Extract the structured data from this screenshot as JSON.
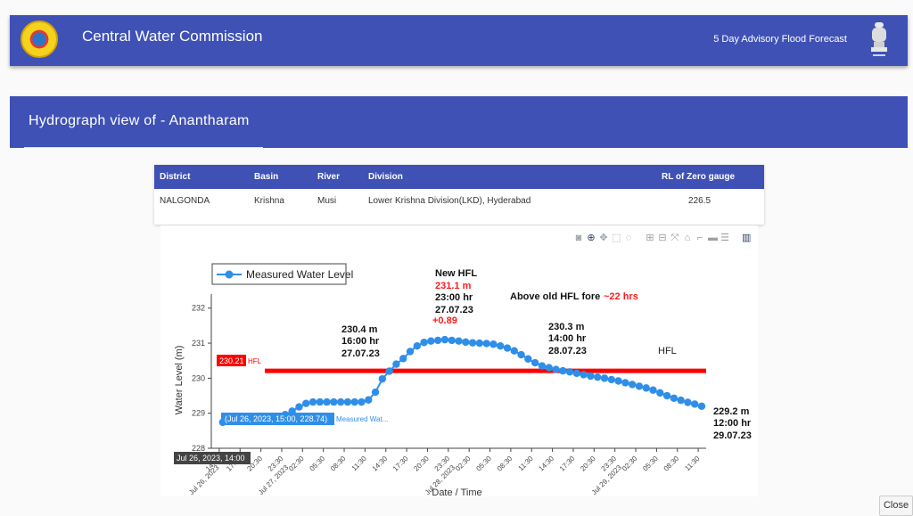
{
  "header": {
    "title": "Central Water Commission",
    "advisory_link": "5 Day Advisory Flood Forecast"
  },
  "panel": {
    "title": "Hydrograph view of - Anantharam"
  },
  "station_table": {
    "headers": [
      "District",
      "Basin",
      "River",
      "Division",
      "RL of Zero gauge"
    ],
    "row": [
      "NALGONDA",
      "Krishna",
      "Musi",
      "Lower Krishna Division(LKD), Hyderabad",
      "226.5"
    ]
  },
  "modebar": {
    "icons": [
      "camera-icon",
      "zoom-icon",
      "pan-icon",
      "box-select-icon",
      "lasso-icon",
      "zoom-in-icon",
      "zoom-out-icon",
      "autoscale-icon",
      "reset-axes-icon",
      "spike-lines-icon",
      "hover-closest-icon",
      "hover-compare-icon",
      "plotly-logo-icon"
    ],
    "glyphs": [
      "◙",
      "⊕",
      "✥",
      "⬚",
      "◌",
      "⊞",
      "⊟",
      "⤧",
      "⌂",
      "⌐",
      "▬",
      "☰",
      "▥"
    ]
  },
  "chart_data": {
    "type": "line",
    "series": [
      {
        "name": "Measured Water Level",
        "color": "#2f8fe8",
        "x": [
          "2023-07-26 14:00",
          "2023-07-26 15:00",
          "2023-07-26 16:00",
          "2023-07-26 17:00",
          "2023-07-26 18:00",
          "2023-07-26 19:00",
          "2023-07-26 20:00",
          "2023-07-26 21:00",
          "2023-07-26 22:00",
          "2023-07-26 23:00",
          "2023-07-27 00:00",
          "2023-07-27 01:00",
          "2023-07-27 02:00",
          "2023-07-27 03:00",
          "2023-07-27 04:00",
          "2023-07-27 05:00",
          "2023-07-27 06:00",
          "2023-07-27 07:00",
          "2023-07-27 08:00",
          "2023-07-27 09:00",
          "2023-07-27 10:00",
          "2023-07-27 11:00",
          "2023-07-27 12:00",
          "2023-07-27 13:00",
          "2023-07-27 14:00",
          "2023-07-27 15:00",
          "2023-07-27 16:00",
          "2023-07-27 17:00",
          "2023-07-27 18:00",
          "2023-07-27 19:00",
          "2023-07-27 20:00",
          "2023-07-27 21:00",
          "2023-07-27 22:00",
          "2023-07-27 23:00",
          "2023-07-28 00:00",
          "2023-07-28 01:00",
          "2023-07-28 02:00",
          "2023-07-28 03:00",
          "2023-07-28 04:00",
          "2023-07-28 05:00",
          "2023-07-28 06:00",
          "2023-07-28 07:00",
          "2023-07-28 08:00",
          "2023-07-28 09:00",
          "2023-07-28 10:00",
          "2023-07-28 11:00",
          "2023-07-28 12:00",
          "2023-07-28 13:00",
          "2023-07-28 14:00",
          "2023-07-28 15:00",
          "2023-07-28 16:00",
          "2023-07-28 17:00",
          "2023-07-28 18:00",
          "2023-07-28 19:00",
          "2023-07-28 20:00",
          "2023-07-28 21:00",
          "2023-07-28 22:00",
          "2023-07-28 23:00",
          "2023-07-29 00:00",
          "2023-07-29 01:00",
          "2023-07-29 02:00",
          "2023-07-29 03:00",
          "2023-07-29 04:00",
          "2023-07-29 05:00",
          "2023-07-29 06:00",
          "2023-07-29 07:00",
          "2023-07-29 08:00",
          "2023-07-29 09:00",
          "2023-07-29 10:00",
          "2023-07-29 11:00",
          "2023-07-29 12:00"
        ],
        "y": [
          null,
          228.74,
          null,
          null,
          null,
          null,
          null,
          null,
          null,
          228.86,
          228.96,
          229.06,
          229.18,
          229.28,
          229.32,
          229.32,
          229.32,
          229.32,
          229.32,
          229.32,
          229.32,
          229.32,
          229.38,
          229.6,
          229.98,
          230.2,
          230.4,
          230.56,
          230.76,
          230.92,
          231.02,
          231.06,
          231.08,
          231.1,
          231.08,
          231.06,
          231.03,
          231.01,
          231.0,
          230.99,
          230.97,
          230.92,
          230.86,
          230.78,
          230.67,
          230.55,
          230.44,
          230.35,
          230.3,
          230.25,
          230.21,
          230.18,
          230.14,
          230.1,
          230.06,
          230.03,
          230.0,
          229.96,
          229.92,
          229.87,
          229.82,
          229.77,
          229.72,
          229.66,
          229.58,
          229.5,
          229.43,
          229.37,
          229.31,
          229.26,
          229.2
        ]
      }
    ],
    "hfl": {
      "value": 230.21,
      "label": "HFL",
      "color": "#ff0000"
    },
    "xlabel": "Date / Time",
    "ylabel": "Water Level (m)",
    "ylim": [
      228,
      232.4
    ],
    "yticks": [
      228,
      229,
      230,
      231,
      232
    ],
    "xtick_labels": [
      "14:30",
      "17:30",
      "20:30",
      "23:30",
      "02:30",
      "05:30",
      "08:30",
      "11:30",
      "14:30",
      "17:30",
      "20:30",
      "23:30",
      "02:30",
      "05:30",
      "08:30",
      "11:30",
      "14:30",
      "17:30",
      "20:30",
      "23:30",
      "02:30",
      "05:30",
      "08:30",
      "11:30"
    ],
    "xtick_date_labels": [
      "Jul 26, 2023",
      "Jul 27, 2023",
      "Jul 28, 2023",
      "Jul 29, 2023"
    ],
    "legend_position": "top-left",
    "hover": {
      "point_text": "(Jul 26, 2023, 15:00, 228.74)",
      "series_text": "Measured Wat...",
      "hfl_value": "230.21",
      "hfl_text": "HFL",
      "x_spike_label": "Jul 26, 2023, 14:00"
    },
    "annotations": {
      "new_hfl_title": "New HFL",
      "new_hfl_value": "231.1 m",
      "new_hfl_time": "23:00 hr",
      "new_hfl_date": "27.07.23",
      "new_hfl_rise": "+0.89",
      "above_old": "Above old HFL fore ",
      "above_old_hours": "~22 hrs",
      "rise_value": "230.4 m",
      "rise_time": "16:00 hr",
      "rise_date": "27.07.23",
      "fall_value": "230.3 m",
      "fall_time": "14:00 hr",
      "fall_date": "28.07.23",
      "hfl_line_label": "HFL",
      "last_value": "229.2 m",
      "last_time": "12:00 hr",
      "last_date": "29.07.23"
    }
  },
  "footer": {
    "close_label": "Close"
  }
}
